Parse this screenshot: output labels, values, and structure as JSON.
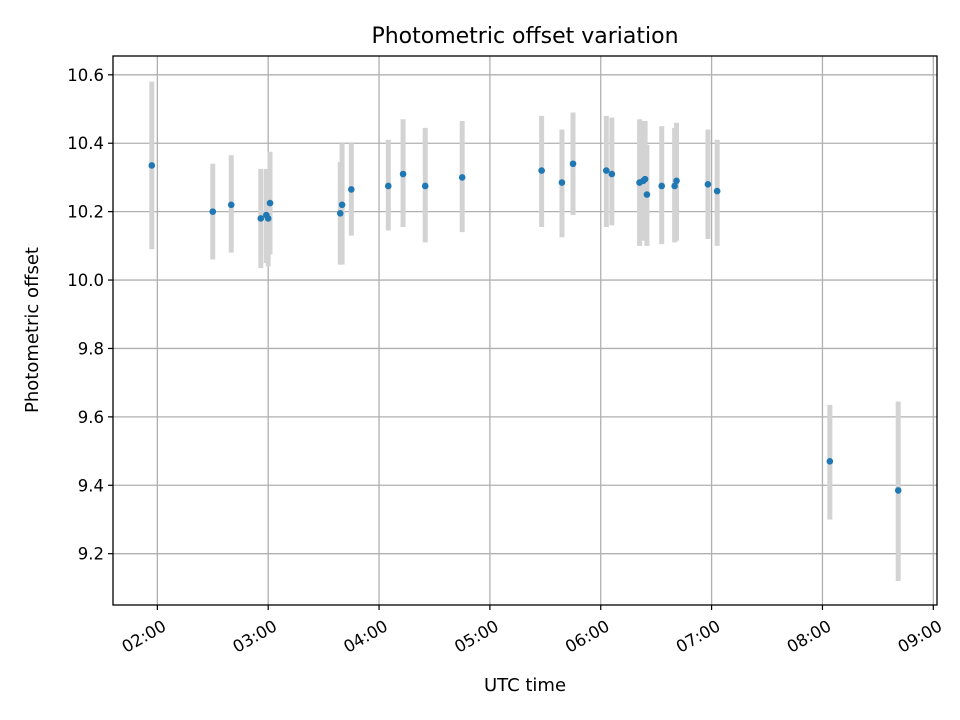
{
  "chart_data": {
    "type": "scatter",
    "title": "Photometric offset variation",
    "xlabel": "UTC time",
    "ylabel": "Photometric offset",
    "xlim": [
      "01:36",
      "09:02"
    ],
    "ylim": [
      9.05,
      10.655
    ],
    "x_ticks": [
      "02:00",
      "03:00",
      "04:00",
      "05:00",
      "06:00",
      "07:00",
      "08:00",
      "09:00"
    ],
    "y_ticks": [
      9.2,
      9.4,
      9.6,
      9.8,
      10.0,
      10.2,
      10.4,
      10.6
    ],
    "y_tick_labels": [
      "9.2",
      "9.4",
      "9.6",
      "9.8",
      "10.0",
      "10.2",
      "10.4",
      "10.6"
    ],
    "grid": true,
    "marker_color": "#1f77b4",
    "errorbar_color": "#d3d3d3",
    "points": [
      {
        "t": "01:57",
        "y": 10.335,
        "lo": 10.09,
        "hi": 10.58
      },
      {
        "t": "02:30",
        "y": 10.2,
        "lo": 10.06,
        "hi": 10.34
      },
      {
        "t": "02:40",
        "y": 10.22,
        "lo": 10.08,
        "hi": 10.365
      },
      {
        "t": "02:56",
        "y": 10.18,
        "lo": 10.035,
        "hi": 10.325
      },
      {
        "t": "02:59",
        "y": 10.19,
        "lo": 10.05,
        "hi": 10.325
      },
      {
        "t": "03:00",
        "y": 10.18,
        "lo": 10.04,
        "hi": 10.32
      },
      {
        "t": "03:01",
        "y": 10.225,
        "lo": 10.075,
        "hi": 10.375
      },
      {
        "t": "03:39",
        "y": 10.195,
        "lo": 10.045,
        "hi": 10.345
      },
      {
        "t": "03:40",
        "y": 10.22,
        "lo": 10.045,
        "hi": 10.4
      },
      {
        "t": "03:45",
        "y": 10.265,
        "lo": 10.13,
        "hi": 10.4
      },
      {
        "t": "04:05",
        "y": 10.275,
        "lo": 10.145,
        "hi": 10.41
      },
      {
        "t": "04:13",
        "y": 10.31,
        "lo": 10.155,
        "hi": 10.47
      },
      {
        "t": "04:25",
        "y": 10.275,
        "lo": 10.11,
        "hi": 10.445
      },
      {
        "t": "04:45",
        "y": 10.3,
        "lo": 10.14,
        "hi": 10.465
      },
      {
        "t": "05:28",
        "y": 10.32,
        "lo": 10.155,
        "hi": 10.48
      },
      {
        "t": "05:39",
        "y": 10.285,
        "lo": 10.125,
        "hi": 10.44
      },
      {
        "t": "05:45",
        "y": 10.34,
        "lo": 10.19,
        "hi": 10.49
      },
      {
        "t": "06:03",
        "y": 10.32,
        "lo": 10.155,
        "hi": 10.48
      },
      {
        "t": "06:06",
        "y": 10.31,
        "lo": 10.16,
        "hi": 10.475
      },
      {
        "t": "06:21",
        "y": 10.285,
        "lo": 10.1,
        "hi": 10.47
      },
      {
        "t": "06:23",
        "y": 10.29,
        "lo": 10.115,
        "hi": 10.465
      },
      {
        "t": "06:24",
        "y": 10.295,
        "lo": 10.12,
        "hi": 10.465
      },
      {
        "t": "06:25",
        "y": 10.25,
        "lo": 10.1,
        "hi": 10.395
      },
      {
        "t": "06:33",
        "y": 10.275,
        "lo": 10.105,
        "hi": 10.45
      },
      {
        "t": "06:40",
        "y": 10.275,
        "lo": 10.11,
        "hi": 10.445
      },
      {
        "t": "06:41",
        "y": 10.29,
        "lo": 10.115,
        "hi": 10.46
      },
      {
        "t": "06:58",
        "y": 10.28,
        "lo": 10.12,
        "hi": 10.44
      },
      {
        "t": "07:03",
        "y": 10.26,
        "lo": 10.1,
        "hi": 10.41
      },
      {
        "t": "08:04",
        "y": 9.47,
        "lo": 9.3,
        "hi": 9.635
      },
      {
        "t": "08:41",
        "y": 9.385,
        "lo": 9.12,
        "hi": 9.645
      }
    ]
  }
}
